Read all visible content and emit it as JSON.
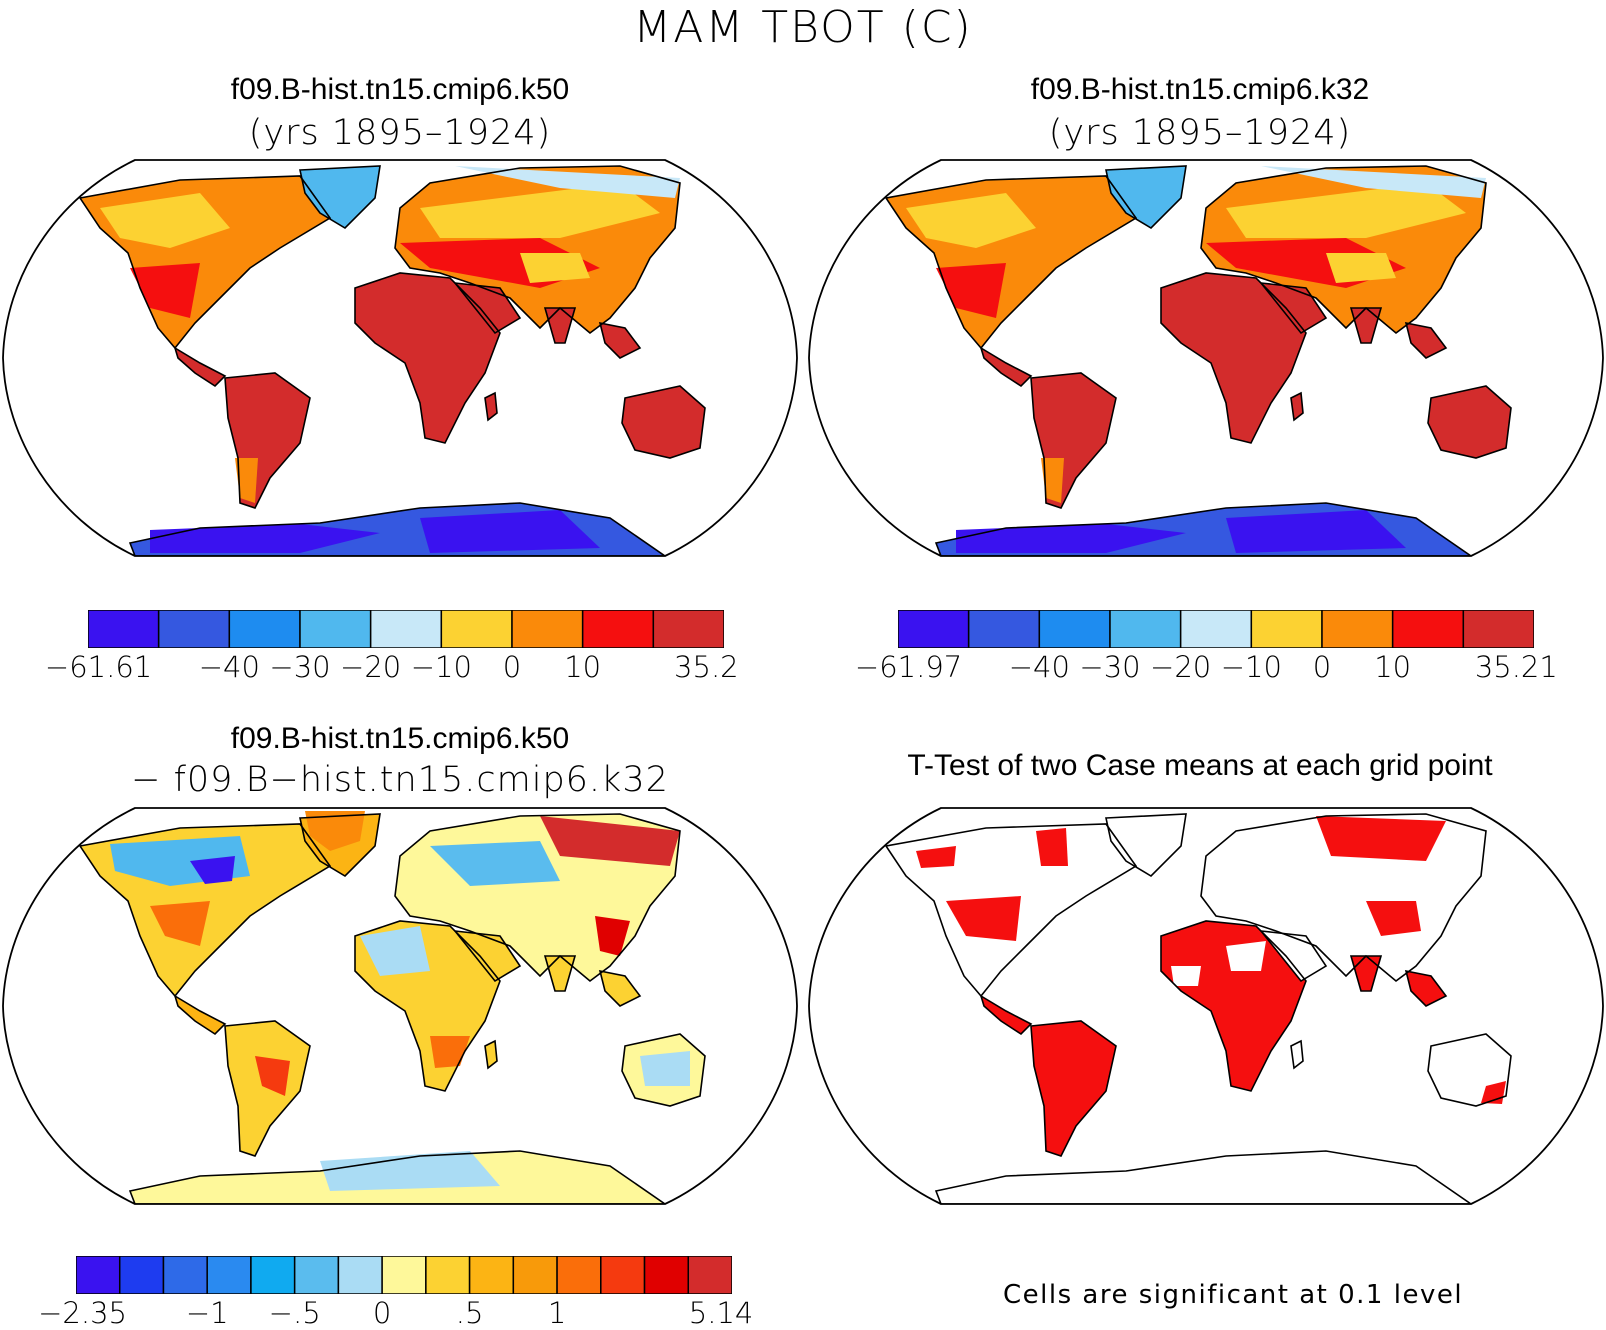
{
  "figure": {
    "title": "MAM TBOT (C)"
  },
  "panels": [
    {
      "id": "case1",
      "title_line1": "f09.B-hist.tn15.cmip6.k50",
      "title_line2": "(yrs 1895–1924)",
      "colorbar": {
        "colors": [
          "#3a12f0",
          "#3558e0",
          "#1e8cf0",
          "#50b8ee",
          "#c8e8f8",
          "#fcd232",
          "#fa8a0a",
          "#f50f0f",
          "#d32c2c"
        ],
        "labels": [
          "−61.61",
          "−40",
          "−30",
          "−20",
          "−10",
          "0",
          "10",
          "35.2"
        ]
      }
    },
    {
      "id": "case2",
      "title_line1": "f09.B-hist.tn15.cmip6.k32",
      "title_line2": "(yrs 1895–1924)",
      "colorbar": {
        "colors": [
          "#3a12f0",
          "#3558e0",
          "#1e8cf0",
          "#50b8ee",
          "#c8e8f8",
          "#fcd232",
          "#fa8a0a",
          "#f50f0f",
          "#d32c2c"
        ],
        "labels": [
          "−61.97",
          "−40",
          "−30",
          "−20",
          "−10",
          "0",
          "10",
          "35.21"
        ]
      }
    },
    {
      "id": "difference",
      "title_line1": "f09.B-hist.tn15.cmip6.k50",
      "title_line2": "− f09.B−hist.tn15.cmip6.k32",
      "colorbar": {
        "colors": [
          "#3a12f0",
          "#1e3cf0",
          "#2e6ae8",
          "#2a8af0",
          "#10aaf0",
          "#5abcee",
          "#aadcf4",
          "#fef89a",
          "#fcd232",
          "#fcb414",
          "#f89a0a",
          "#fa6e0a",
          "#f53a0f",
          "#e00000",
          "#d32c2c"
        ],
        "labels": [
          "−2.35",
          "−1",
          "−.5",
          "0",
          ".5",
          "1",
          "5.14"
        ]
      }
    },
    {
      "id": "ttest",
      "title_line1": "T-Test of two Case means at each grid point",
      "note": "Cells are significant at 0.1 level",
      "significant_color": "#f50f0f"
    }
  ]
}
